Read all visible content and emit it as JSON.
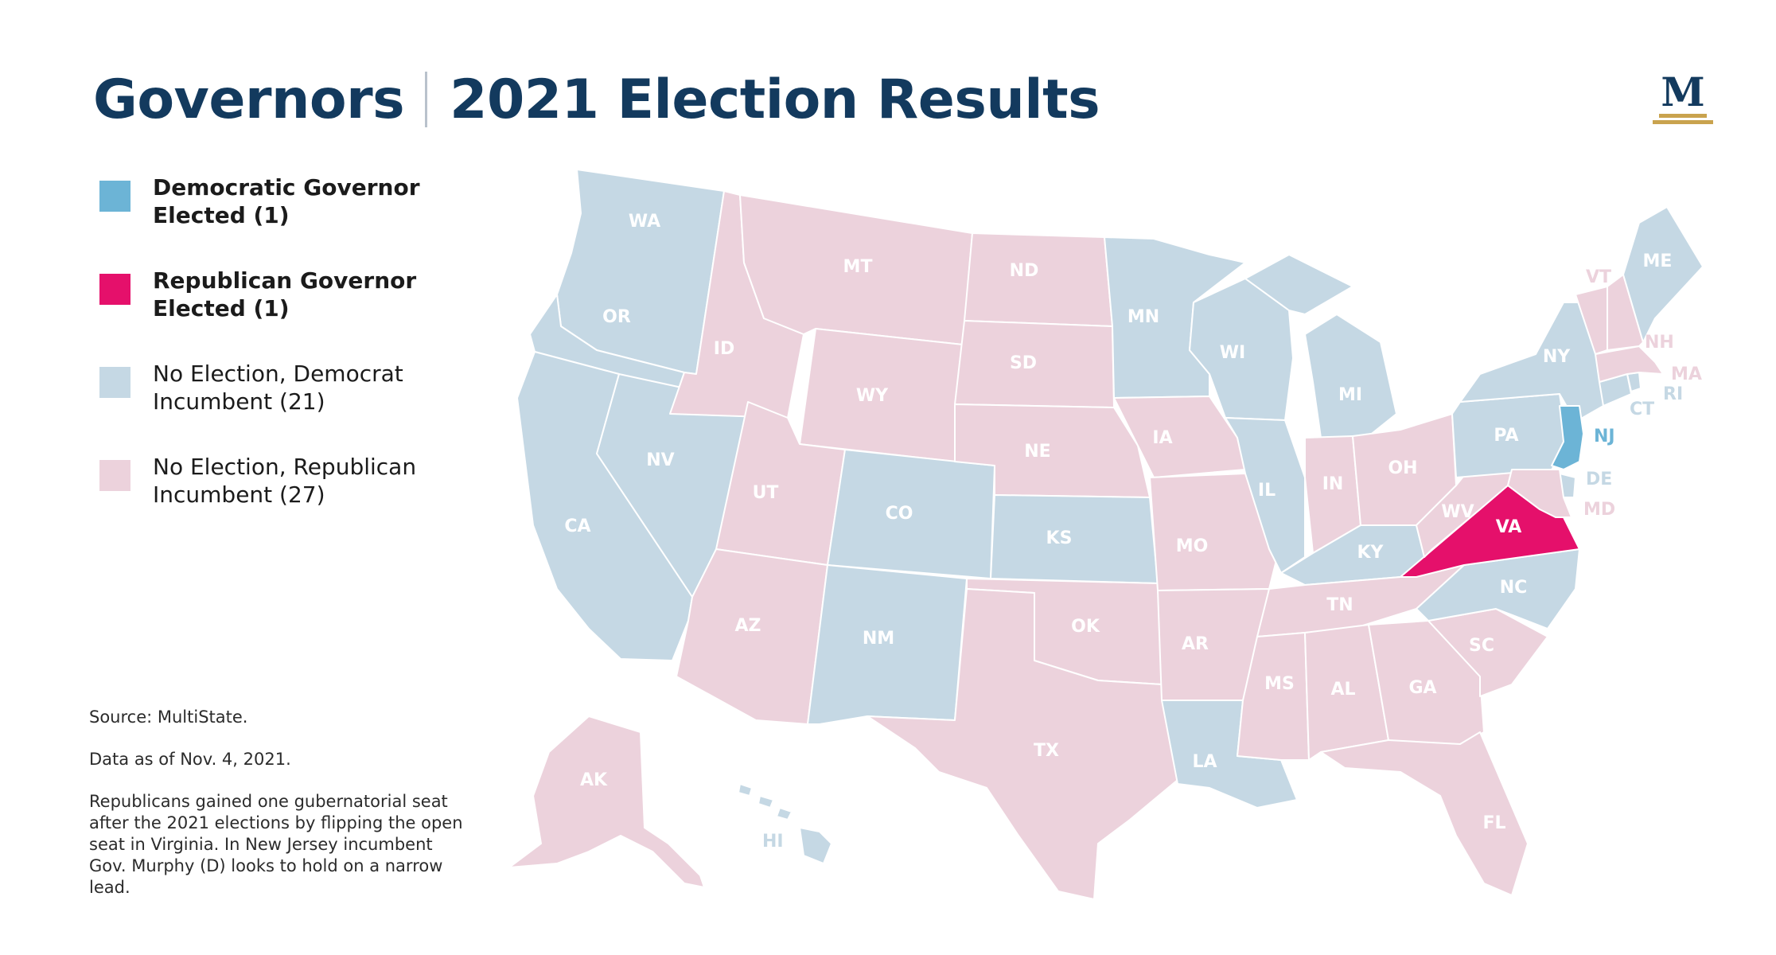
{
  "title": {
    "part1": "Governors",
    "part2": "2021 Election Results"
  },
  "logo": {
    "letter": "M"
  },
  "colors": {
    "dem_elected": "#6cb4d6",
    "rep_elected": "#e5106b",
    "dem_incumbent": "#c5d8e4",
    "rep_incumbent": "#ecd2dc",
    "title": "#133a5e",
    "gold": "#c9a34e"
  },
  "legend": [
    {
      "key": "dem_elected",
      "label": "Democratic Governor Elected (1)"
    },
    {
      "key": "rep_elected",
      "label": "Republican Governor Elected (1)"
    },
    {
      "key": "dem_incumbent",
      "label": "No Election, Democrat Incumbent (21)"
    },
    {
      "key": "rep_incumbent",
      "label": "No Election, Republican Incumbent (27)"
    }
  ],
  "notes": {
    "source": "Source: MultiState.",
    "date": "Data as of Nov. 4, 2021.",
    "summary": "Republicans gained one gubernatorial seat after the 2021 elections by flipping the open seat in Virginia. In New Jersey incumbent Gov. Murphy (D) looks to hold on a narrow lead."
  },
  "states": {
    "WA": "dem_incumbent",
    "OR": "dem_incumbent",
    "CA": "dem_incumbent",
    "NV": "dem_incumbent",
    "ID": "rep_incumbent",
    "MT": "rep_incumbent",
    "WY": "rep_incumbent",
    "UT": "rep_incumbent",
    "AZ": "rep_incumbent",
    "CO": "dem_incumbent",
    "NM": "dem_incumbent",
    "ND": "rep_incumbent",
    "SD": "rep_incumbent",
    "NE": "rep_incumbent",
    "KS": "dem_incumbent",
    "OK": "rep_incumbent",
    "TX": "rep_incumbent",
    "MN": "dem_incumbent",
    "IA": "rep_incumbent",
    "MO": "rep_incumbent",
    "AR": "rep_incumbent",
    "LA": "dem_incumbent",
    "WI": "dem_incumbent",
    "IL": "dem_incumbent",
    "MI": "dem_incumbent",
    "IN": "rep_incumbent",
    "OH": "rep_incumbent",
    "KY": "dem_incumbent",
    "TN": "rep_incumbent",
    "MS": "rep_incumbent",
    "AL": "rep_incumbent",
    "GA": "rep_incumbent",
    "FL": "rep_incumbent",
    "SC": "rep_incumbent",
    "NC": "dem_incumbent",
    "VA": "rep_elected",
    "WV": "rep_incumbent",
    "PA": "dem_incumbent",
    "NY": "dem_incumbent",
    "NJ": "dem_elected",
    "DE": "dem_incumbent",
    "MD": "rep_incumbent",
    "CT": "dem_incumbent",
    "RI": "dem_incumbent",
    "MA": "rep_incumbent",
    "VT": "rep_incumbent",
    "NH": "rep_incumbent",
    "ME": "dem_incumbent",
    "AK": "rep_incumbent",
    "HI": "dem_incumbent"
  }
}
